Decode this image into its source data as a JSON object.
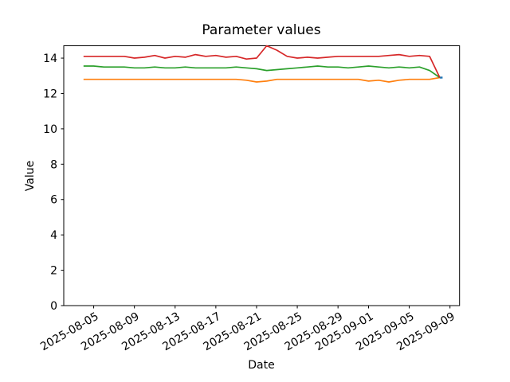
{
  "window": {
    "background": "#ffffff"
  },
  "chart_data": {
    "type": "line",
    "title": "Parameter values",
    "xlabel": "Date",
    "ylabel": "Value",
    "grid": false,
    "legend": "none",
    "ylim": [
      0,
      14.7
    ],
    "y_ticks": [
      0,
      2,
      4,
      6,
      8,
      10,
      12,
      14
    ],
    "x_tick_labels": [
      "2025-08-05",
      "2025-08-09",
      "2025-08-13",
      "2025-08-17",
      "2025-08-21",
      "2025-08-25",
      "2025-08-29",
      "2025-09-01",
      "2025-09-05",
      "2025-09-09"
    ],
    "x_tick_day_indices": [
      1,
      5,
      9,
      13,
      17,
      21,
      25,
      28,
      32,
      36
    ],
    "xlim_day_indices": [
      -1.94,
      36.94
    ],
    "x_dates": [
      "2025-08-04",
      "2025-08-05",
      "2025-08-06",
      "2025-08-07",
      "2025-08-08",
      "2025-08-09",
      "2025-08-10",
      "2025-08-11",
      "2025-08-12",
      "2025-08-13",
      "2025-08-14",
      "2025-08-15",
      "2025-08-16",
      "2025-08-17",
      "2025-08-18",
      "2025-08-19",
      "2025-08-20",
      "2025-08-21",
      "2025-08-22",
      "2025-08-23",
      "2025-08-24",
      "2025-08-25",
      "2025-08-26",
      "2025-08-27",
      "2025-08-28",
      "2025-08-29",
      "2025-08-30",
      "2025-08-31",
      "2025-09-01",
      "2025-09-02",
      "2025-09-03",
      "2025-09-04",
      "2025-09-05",
      "2025-09-06",
      "2025-09-07",
      "2025-09-08"
    ],
    "series": [
      {
        "name": "blue-endpoint",
        "color": "#1f77b4",
        "note": "hidden series, visible only as final point",
        "points": [
          {
            "date": "2025-09-08",
            "value": 12.9
          }
        ]
      },
      {
        "name": "orange",
        "color": "#ff7f0e",
        "values": [
          12.8,
          12.8,
          12.8,
          12.8,
          12.8,
          12.8,
          12.8,
          12.8,
          12.8,
          12.8,
          12.8,
          12.8,
          12.8,
          12.8,
          12.8,
          12.8,
          12.75,
          12.65,
          12.7,
          12.8,
          12.8,
          12.8,
          12.8,
          12.8,
          12.8,
          12.8,
          12.8,
          12.8,
          12.7,
          12.75,
          12.65,
          12.75,
          12.8,
          12.8,
          12.8,
          12.9
        ]
      },
      {
        "name": "green",
        "color": "#2ca02c",
        "values": [
          13.55,
          13.55,
          13.5,
          13.5,
          13.5,
          13.45,
          13.45,
          13.5,
          13.45,
          13.45,
          13.5,
          13.45,
          13.45,
          13.45,
          13.45,
          13.5,
          13.45,
          13.4,
          13.3,
          13.35,
          13.4,
          13.45,
          13.5,
          13.55,
          13.5,
          13.5,
          13.45,
          13.5,
          13.55,
          13.5,
          13.45,
          13.5,
          13.45,
          13.5,
          13.3,
          12.9
        ]
      },
      {
        "name": "red",
        "color": "#d62728",
        "values": [
          14.1,
          14.1,
          14.1,
          14.1,
          14.1,
          14.0,
          14.05,
          14.15,
          14.0,
          14.1,
          14.05,
          14.2,
          14.1,
          14.15,
          14.05,
          14.1,
          13.95,
          14.0,
          14.7,
          14.45,
          14.1,
          14.0,
          14.05,
          14.0,
          14.05,
          14.1,
          14.1,
          14.1,
          14.1,
          14.1,
          14.15,
          14.2,
          14.1,
          14.15,
          14.1,
          12.9
        ]
      }
    ]
  }
}
